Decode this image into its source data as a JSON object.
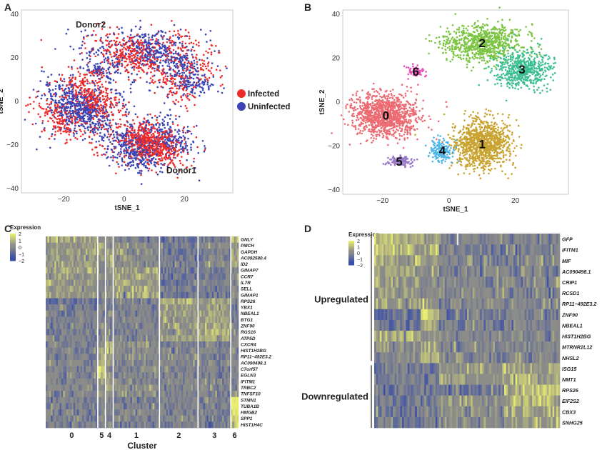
{
  "panels": {
    "a": "A",
    "b": "B",
    "c": "C",
    "d": "D"
  },
  "colors": {
    "infected": "#ee2a2a",
    "uninfected": "#3b44b4",
    "hm_low": "#3a4fa8",
    "hm_mid": "#1c1c1c",
    "hm_high": "#e8ec70",
    "hm_neutral": "#8c8c88"
  },
  "chart_data": [
    {
      "id": "A",
      "type": "scatter",
      "xlabel": "tSNE_1",
      "ylabel": "tSNE_2",
      "xlim": [
        -34,
        36
      ],
      "ylim": [
        -42,
        42
      ],
      "xticks": [
        "−20",
        "0",
        "20"
      ],
      "yticks": [
        "−40",
        "−20",
        "0",
        "20",
        "40"
      ],
      "legend": {
        "position": "right",
        "entries": [
          "Infected",
          "Uninfected"
        ]
      },
      "annotations": [
        "Donor2",
        "Donor1"
      ],
      "series": [
        {
          "name": "Infected",
          "color": "#ee2a2a"
        },
        {
          "name": "Uninfected",
          "color": "#3b44b4"
        }
      ],
      "clusters": [
        {
          "cx": 6,
          "cy": 22,
          "sx": 16,
          "sy": 9,
          "n": 900,
          "label": "Donor2"
        },
        {
          "cx": 20,
          "cy": 10,
          "sx": 8,
          "sy": 9,
          "n": 350
        },
        {
          "cx": -14,
          "cy": -2,
          "sx": 11,
          "sy": 12,
          "n": 1200
        },
        {
          "cx": 8,
          "cy": -20,
          "sx": 11,
          "sy": 9,
          "n": 1200,
          "label": "Donor1"
        },
        {
          "cx": -9,
          "cy": 14,
          "sx": 2,
          "sy": 2,
          "n": 50
        }
      ]
    },
    {
      "id": "B",
      "type": "scatter",
      "xlabel": "tSNE_1",
      "ylabel": "tSNE_2",
      "xlim": [
        -32,
        36
      ],
      "ylim": [
        -42,
        42
      ],
      "xticks": [
        "−20",
        "0",
        "20"
      ],
      "yticks": [
        "−40",
        "−20",
        "0",
        "20",
        "40"
      ],
      "series": [
        {
          "name": "0",
          "color": "#ec6a72",
          "cx": -19,
          "cy": -6,
          "sx": 8,
          "sy": 8
        },
        {
          "name": "1",
          "color": "#c9a330",
          "cx": 10,
          "cy": -19,
          "sx": 7,
          "sy": 9
        },
        {
          "name": "2",
          "color": "#7cc443",
          "cx": 10,
          "cy": 27,
          "sx": 10,
          "sy": 7
        },
        {
          "name": "3",
          "color": "#3dbf92",
          "cx": 22,
          "cy": 15,
          "sx": 7,
          "sy": 7
        },
        {
          "name": "4",
          "color": "#4fb6e8",
          "cx": -2,
          "cy": -22,
          "sx": 3,
          "sy": 4
        },
        {
          "name": "5",
          "color": "#9a79c9",
          "cx": -15,
          "cy": -27,
          "sx": 3,
          "sy": 2
        },
        {
          "name": "6",
          "color": "#e84fb4",
          "cx": -10,
          "cy": 14,
          "sx": 2,
          "sy": 2
        }
      ]
    },
    {
      "id": "C",
      "type": "heatmap",
      "legend_title": "Expression",
      "legend_ticks": [
        "2",
        "1",
        "0",
        "−1",
        "−2"
      ],
      "xlabel": "Cluster",
      "clusters": [
        "0",
        "5",
        "4",
        "1",
        "2",
        "3",
        "6"
      ],
      "cluster_widths": [
        0.27,
        0.04,
        0.04,
        0.24,
        0.2,
        0.17,
        0.04
      ],
      "genes": [
        "GNLY",
        "PMCH",
        "GAPDH",
        "AC092580.4",
        "ID2",
        "GIMAP7",
        "CCR7",
        "IL7R",
        "SELL",
        "GIMAP1",
        "RPS26",
        "YBX1",
        "NBEAL1",
        "BTG1",
        "ZNF90",
        "RGS16",
        "ATP5D",
        "CXCR4",
        "HIST1H2BG",
        "RP11−492E3.2",
        "AC090498.1",
        "C7orf57",
        "EGLN3",
        "IFITM1",
        "TRBC2",
        "TNFSF10",
        "STMN1",
        "TUBA1B",
        "HMGB2",
        "SPP1",
        "HIST1H4C"
      ],
      "highlight": [
        [
          0.6,
          0.2,
          0.5,
          -0.3,
          -0.6,
          -0.5,
          1.2
        ],
        [
          0.3,
          0.4,
          0.2,
          0.1,
          -0.2,
          -0.1,
          0.4
        ],
        [
          0.6,
          0.5,
          0.7,
          0.2,
          -0.4,
          -0.3,
          0.8
        ],
        [
          0.5,
          0.3,
          0.6,
          0.2,
          -0.3,
          -0.2,
          0.6
        ],
        [
          0.5,
          0.2,
          0.5,
          0.1,
          -0.3,
          -0.2,
          0.5
        ],
        [
          0.5,
          0.2,
          0.3,
          0.6,
          -0.5,
          -0.4,
          0.1
        ],
        [
          0.3,
          0.1,
          0.2,
          0.7,
          -0.4,
          -0.3,
          0.0
        ],
        [
          0.4,
          0.1,
          0.2,
          0.6,
          -0.4,
          -0.3,
          0.0
        ],
        [
          0.3,
          0.1,
          0.2,
          0.6,
          -0.4,
          -0.3,
          0.0
        ],
        [
          0.3,
          0.1,
          0.2,
          0.7,
          -0.5,
          -0.4,
          0.0
        ],
        [
          -0.6,
          -0.3,
          -0.3,
          -0.3,
          0.8,
          0.6,
          -0.2
        ],
        [
          -0.4,
          -0.2,
          -0.2,
          -0.2,
          0.6,
          0.6,
          -0.2
        ],
        [
          -0.3,
          -0.2,
          -0.2,
          -0.2,
          0.5,
          0.7,
          -0.1
        ],
        [
          -0.3,
          -0.1,
          -0.2,
          -0.2,
          0.5,
          0.7,
          0.0
        ],
        [
          -0.3,
          -0.1,
          -0.2,
          -0.2,
          0.4,
          0.8,
          0.0
        ],
        [
          -0.4,
          -0.1,
          -0.2,
          -0.2,
          0.4,
          0.8,
          0.0
        ],
        [
          -0.2,
          -0.1,
          -0.1,
          -0.1,
          0.4,
          0.6,
          0.0
        ],
        [
          -0.2,
          0.4,
          0.8,
          0.2,
          -0.2,
          -0.2,
          0.0
        ],
        [
          -0.2,
          0.4,
          0.9,
          0.1,
          -0.2,
          -0.2,
          0.0
        ],
        [
          -0.2,
          0.6,
          0.6,
          0.0,
          -0.2,
          -0.2,
          0.0
        ],
        [
          -0.1,
          0.5,
          0.4,
          0.0,
          -0.1,
          -0.1,
          0.0
        ],
        [
          -0.2,
          1.6,
          0.3,
          -0.1,
          -0.2,
          -0.2,
          0.0
        ],
        [
          -0.2,
          1.4,
          0.3,
          -0.1,
          -0.2,
          -0.2,
          0.0
        ],
        [
          -0.1,
          0.8,
          0.4,
          0.0,
          -0.1,
          -0.1,
          0.0
        ],
        [
          -0.1,
          0.3,
          0.5,
          0.2,
          -0.1,
          -0.1,
          0.0
        ],
        [
          -0.1,
          0.4,
          0.3,
          0.0,
          -0.1,
          -0.1,
          0.2
        ],
        [
          -0.2,
          -0.1,
          -0.1,
          -0.2,
          -0.2,
          -0.2,
          1.9
        ],
        [
          -0.2,
          -0.1,
          -0.1,
          -0.2,
          -0.2,
          -0.2,
          1.9
        ],
        [
          -0.2,
          -0.1,
          -0.1,
          -0.2,
          -0.2,
          -0.2,
          1.7
        ],
        [
          -0.1,
          -0.1,
          -0.1,
          -0.1,
          -0.1,
          -0.1,
          1.5
        ],
        [
          -0.2,
          -0.1,
          -0.1,
          -0.2,
          -0.2,
          -0.2,
          1.6
        ]
      ]
    },
    {
      "id": "D",
      "type": "heatmap",
      "legend_title": "Expression",
      "legend_ticks": [
        "2",
        "1",
        "0",
        "−1",
        "−2"
      ],
      "group_labels": [
        "Upregulated",
        "Downregulated"
      ],
      "genes": [
        "GFP",
        "IFITM1",
        "MIF",
        "AC090498.1",
        "CRIP1",
        "RCSD1",
        "RP11−492E3.2",
        "ZNF90",
        "NBEAL1",
        "HIST1H2BG",
        "MTRNR2L12",
        "NHSL2",
        "ISG15",
        "NMT1",
        "RPS26",
        "EIF2S2",
        "CBX3",
        "SNHG25"
      ],
      "column_blocks": [
        0.25,
        0.1,
        0.35,
        0.3
      ],
      "highlight": [
        [
          0.9,
          0.6,
          -0.1,
          -0.2
        ],
        [
          0.9,
          1.0,
          -0.2,
          -0.2
        ],
        [
          0.7,
          0.6,
          -0.1,
          -0.1
        ],
        [
          0.6,
          0.3,
          -0.1,
          -0.1
        ],
        [
          0.5,
          0.2,
          0.0,
          -0.1
        ],
        [
          0.4,
          0.2,
          0.0,
          -0.1
        ],
        [
          0.4,
          0.2,
          0.0,
          -0.1
        ],
        [
          -0.6,
          1.2,
          -0.3,
          -0.3
        ],
        [
          -0.5,
          0.9,
          -0.2,
          -0.2
        ],
        [
          0.6,
          0.2,
          -0.1,
          -0.1
        ],
        [
          0.2,
          0.6,
          -0.1,
          -0.1
        ],
        [
          -0.3,
          0.8,
          -0.1,
          -0.1
        ],
        [
          -0.3,
          -0.3,
          0.4,
          0.6
        ],
        [
          -0.4,
          -0.3,
          0.4,
          0.7
        ],
        [
          -0.6,
          -0.4,
          -0.4,
          1.0
        ],
        [
          -0.5,
          -0.3,
          0.3,
          0.8
        ],
        [
          -0.4,
          -0.3,
          0.2,
          0.7
        ],
        [
          -0.4,
          -0.3,
          0.1,
          0.6
        ]
      ]
    }
  ]
}
